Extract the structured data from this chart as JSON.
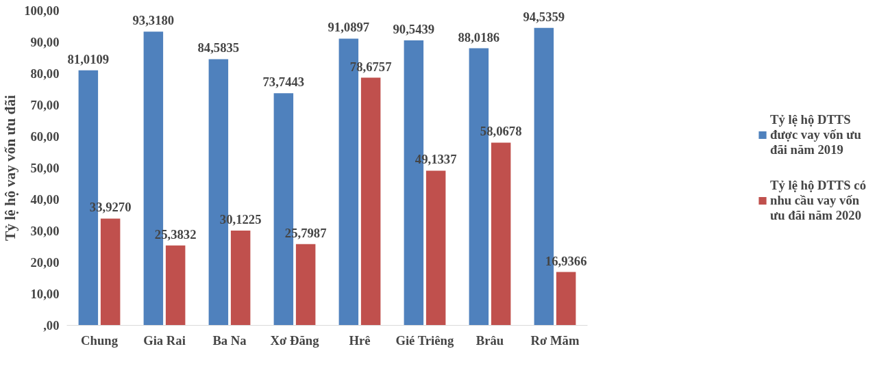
{
  "chart_data": {
    "type": "bar",
    "ylabel": "Tỷ lệ hộ vay vốn ưu đãi",
    "categories": [
      "Chung",
      "Gia Rai",
      "Ba Na",
      "Xơ Đăng",
      "Hrê",
      "Gié Triêng",
      "Brâu",
      "Rơ Măm"
    ],
    "series": [
      {
        "name": "Tỷ lệ hộ DTTS được vay vốn ưu đãi năm 2019",
        "color": "#4f81bd",
        "values": [
          81.0109,
          93.318,
          84.5835,
          73.7443,
          91.0897,
          90.5439,
          88.0186,
          94.5359
        ],
        "value_labels": [
          "81,0109",
          "93,3180",
          "84,5835",
          "73,7443",
          "91,0897",
          "90,5439",
          "88,0186",
          "94,5359"
        ]
      },
      {
        "name": "Tỷ lệ hộ DTTS có nhu cầu vay vốn ưu đãi năm 2020",
        "color": "#c0504d",
        "values": [
          33.927,
          25.3832,
          30.1225,
          25.7987,
          78.6757,
          49.1337,
          58.0678,
          16.9366
        ],
        "value_labels": [
          "33,9270",
          "25,3832",
          "30,1225",
          "25,7987",
          "78,6757",
          "49,1337",
          "58,0678",
          "16,9366"
        ]
      }
    ],
    "ylim": [
      0,
      100
    ],
    "yticks": [
      {
        "value": 0,
        "label": ",00"
      },
      {
        "value": 10,
        "label": "10,00"
      },
      {
        "value": 20,
        "label": "20,00"
      },
      {
        "value": 30,
        "label": "30,00"
      },
      {
        "value": 40,
        "label": "40,00"
      },
      {
        "value": 50,
        "label": "50,00"
      },
      {
        "value": 60,
        "label": "60,00"
      },
      {
        "value": 70,
        "label": "70,00"
      },
      {
        "value": 80,
        "label": "80,00"
      },
      {
        "value": 90,
        "label": "90,00"
      },
      {
        "value": 100,
        "label": "100,00"
      }
    ],
    "grid": false,
    "legend": "right"
  }
}
